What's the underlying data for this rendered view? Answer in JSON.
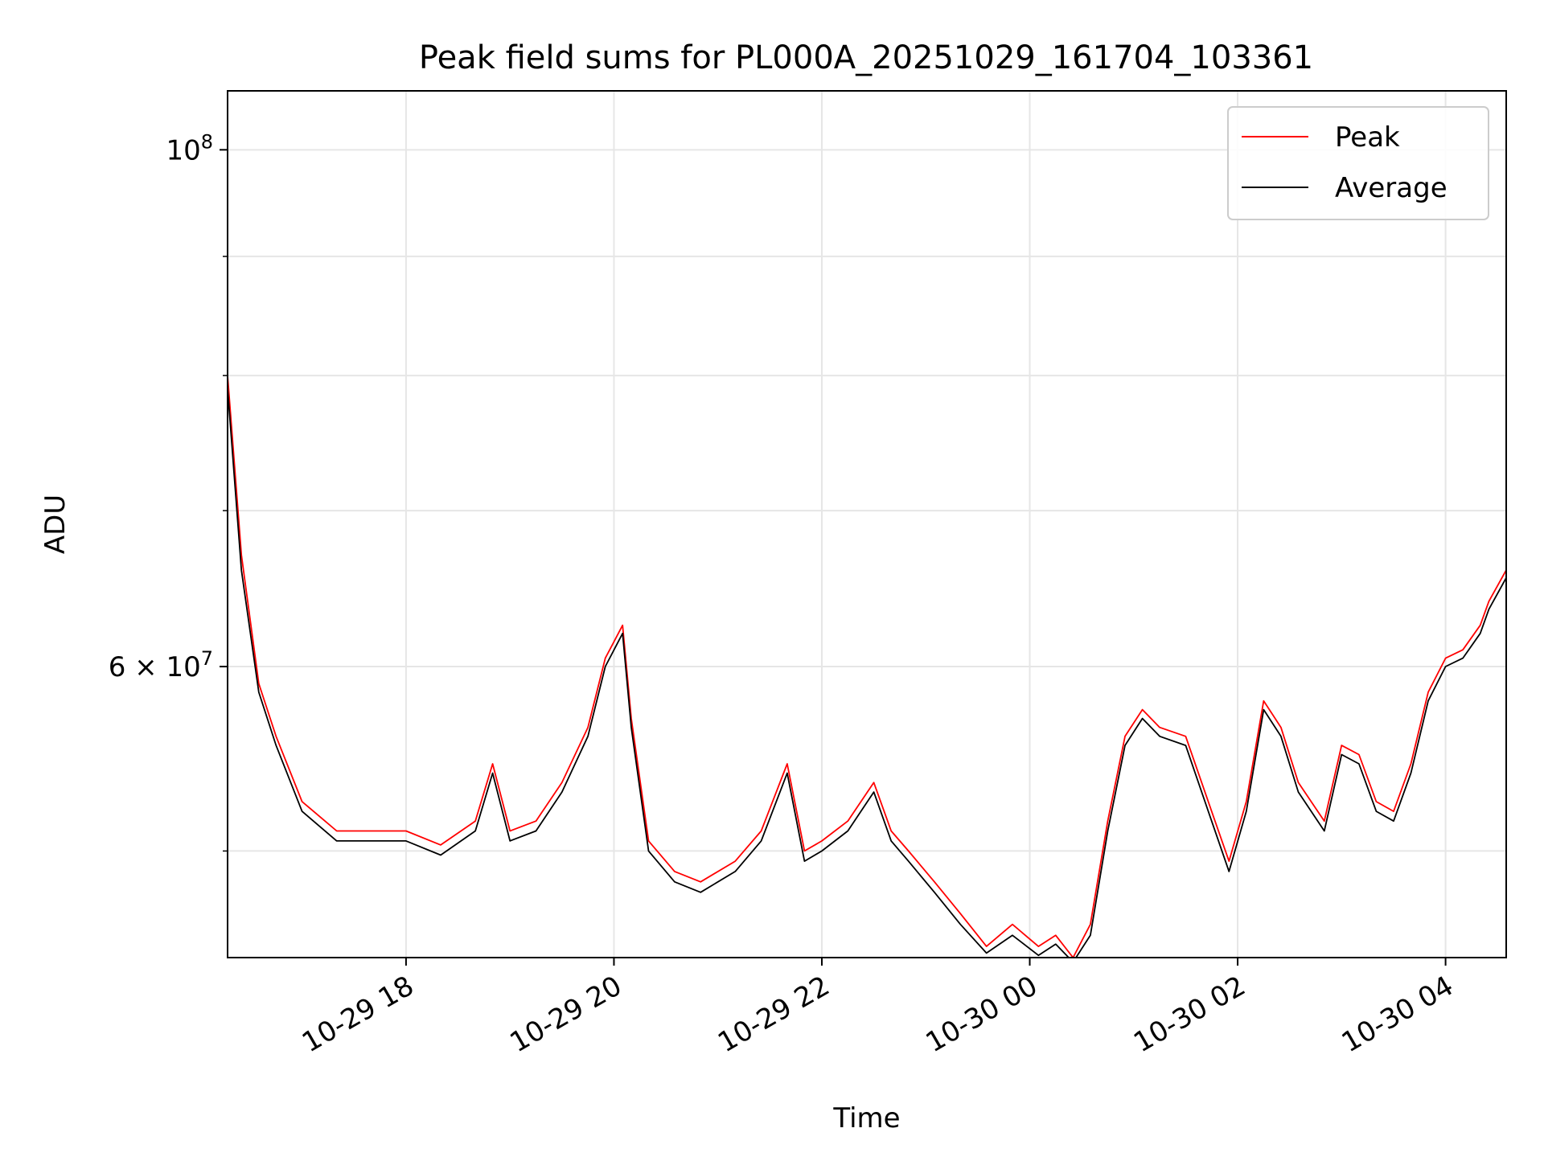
{
  "chart_data": {
    "type": "line",
    "title": "Peak field sums for PL000A_20251029_161704_103361",
    "xlabel": "Time",
    "ylabel": "ADU",
    "x_axis": "datetime",
    "xlim": [
      "2025-10-29 16:17",
      "2025-10-30 04:35"
    ],
    "yscale": "log",
    "ylim": [
      45000000,
      106000000
    ],
    "grid": true,
    "legend": "top-right",
    "x_ticks": [
      {
        "value": "2025-10-29 18:00",
        "label": "10-29 18"
      },
      {
        "value": "2025-10-29 20:00",
        "label": "10-29 20"
      },
      {
        "value": "2025-10-29 22:00",
        "label": "10-29 22"
      },
      {
        "value": "2025-10-30 00:00",
        "label": "10-30 00"
      },
      {
        "value": "2025-10-30 02:00",
        "label": "10-30 02"
      },
      {
        "value": "2025-10-30 04:00",
        "label": "10-30 04"
      }
    ],
    "y_major_ticks": [
      {
        "value": 100000000,
        "label_base": "10",
        "label_exp": "8"
      },
      {
        "value": 60000000,
        "label_base": "6 × 10",
        "label_exp": "7"
      }
    ],
    "y_minor_ticks": [
      50000000,
      70000000,
      80000000,
      90000000
    ],
    "series": [
      {
        "name": "Peak",
        "color": "#ff0000",
        "points": [
          [
            "2025-10-29 16:17",
            80000000
          ],
          [
            "2025-10-29 16:25",
            67000000
          ],
          [
            "2025-10-29 16:35",
            59000000
          ],
          [
            "2025-10-29 16:45",
            56000000
          ],
          [
            "2025-10-29 17:00",
            52500000
          ],
          [
            "2025-10-29 17:20",
            51000000
          ],
          [
            "2025-10-29 17:40",
            51000000
          ],
          [
            "2025-10-29 18:00",
            51000000
          ],
          [
            "2025-10-29 18:20",
            50300000
          ],
          [
            "2025-10-29 18:40",
            51500000
          ],
          [
            "2025-10-29 18:50",
            54500000
          ],
          [
            "2025-10-29 19:00",
            51000000
          ],
          [
            "2025-10-29 19:15",
            51500000
          ],
          [
            "2025-10-29 19:30",
            53500000
          ],
          [
            "2025-10-29 19:45",
            56500000
          ],
          [
            "2025-10-29 19:55",
            60500000
          ],
          [
            "2025-10-29 20:05",
            62500000
          ],
          [
            "2025-10-29 20:10",
            57000000
          ],
          [
            "2025-10-29 20:20",
            50500000
          ],
          [
            "2025-10-29 20:35",
            49000000
          ],
          [
            "2025-10-29 20:50",
            48500000
          ],
          [
            "2025-10-29 21:10",
            49500000
          ],
          [
            "2025-10-29 21:25",
            51000000
          ],
          [
            "2025-10-29 21:40",
            54500000
          ],
          [
            "2025-10-29 21:50",
            50000000
          ],
          [
            "2025-10-29 22:00",
            50500000
          ],
          [
            "2025-10-29 22:15",
            51500000
          ],
          [
            "2025-10-29 22:30",
            53500000
          ],
          [
            "2025-10-29 22:40",
            51000000
          ],
          [
            "2025-10-29 22:50",
            50000000
          ],
          [
            "2025-10-29 23:05",
            48500000
          ],
          [
            "2025-10-29 23:20",
            47000000
          ],
          [
            "2025-10-29 23:35",
            45500000
          ],
          [
            "2025-10-29 23:50",
            46500000
          ],
          [
            "2025-10-30 00:05",
            45500000
          ],
          [
            "2025-10-30 00:15",
            46000000
          ],
          [
            "2025-10-30 00:25",
            45000000
          ],
          [
            "2025-10-30 00:35",
            46500000
          ],
          [
            "2025-10-30 00:45",
            51500000
          ],
          [
            "2025-10-30 00:55",
            56000000
          ],
          [
            "2025-10-30 01:05",
            57500000
          ],
          [
            "2025-10-30 01:15",
            56500000
          ],
          [
            "2025-10-30 01:30",
            56000000
          ],
          [
            "2025-10-30 01:45",
            52000000
          ],
          [
            "2025-10-30 01:55",
            49500000
          ],
          [
            "2025-10-30 02:05",
            52500000
          ],
          [
            "2025-10-30 02:15",
            58000000
          ],
          [
            "2025-10-30 02:25",
            56500000
          ],
          [
            "2025-10-30 02:35",
            53500000
          ],
          [
            "2025-10-30 02:50",
            51500000
          ],
          [
            "2025-10-30 03:00",
            55500000
          ],
          [
            "2025-10-30 03:10",
            55000000
          ],
          [
            "2025-10-30 03:20",
            52500000
          ],
          [
            "2025-10-30 03:30",
            52000000
          ],
          [
            "2025-10-30 03:40",
            54500000
          ],
          [
            "2025-10-30 03:50",
            58500000
          ],
          [
            "2025-10-30 04:00",
            60500000
          ],
          [
            "2025-10-30 04:10",
            61000000
          ],
          [
            "2025-10-30 04:20",
            62500000
          ],
          [
            "2025-10-30 04:25",
            64000000
          ],
          [
            "2025-10-30 04:35",
            66000000
          ]
        ]
      },
      {
        "name": "Average",
        "color": "#000000",
        "points": [
          [
            "2025-10-29 16:17",
            79000000
          ],
          [
            "2025-10-29 16:25",
            66000000
          ],
          [
            "2025-10-29 16:35",
            58500000
          ],
          [
            "2025-10-29 16:45",
            55500000
          ],
          [
            "2025-10-29 17:00",
            52000000
          ],
          [
            "2025-10-29 17:20",
            50500000
          ],
          [
            "2025-10-29 17:40",
            50500000
          ],
          [
            "2025-10-29 18:00",
            50500000
          ],
          [
            "2025-10-29 18:20",
            49800000
          ],
          [
            "2025-10-29 18:40",
            51000000
          ],
          [
            "2025-10-29 18:50",
            54000000
          ],
          [
            "2025-10-29 19:00",
            50500000
          ],
          [
            "2025-10-29 19:15",
            51000000
          ],
          [
            "2025-10-29 19:30",
            53000000
          ],
          [
            "2025-10-29 19:45",
            56000000
          ],
          [
            "2025-10-29 19:55",
            60000000
          ],
          [
            "2025-10-29 20:05",
            62000000
          ],
          [
            "2025-10-29 20:10",
            56500000
          ],
          [
            "2025-10-29 20:20",
            50000000
          ],
          [
            "2025-10-29 20:35",
            48500000
          ],
          [
            "2025-10-29 20:50",
            48000000
          ],
          [
            "2025-10-29 21:10",
            49000000
          ],
          [
            "2025-10-29 21:25",
            50500000
          ],
          [
            "2025-10-29 21:40",
            54000000
          ],
          [
            "2025-10-29 21:50",
            49500000
          ],
          [
            "2025-10-29 22:00",
            50000000
          ],
          [
            "2025-10-29 22:15",
            51000000
          ],
          [
            "2025-10-29 22:30",
            53000000
          ],
          [
            "2025-10-29 22:40",
            50500000
          ],
          [
            "2025-10-29 22:50",
            49500000
          ],
          [
            "2025-10-29 23:05",
            48000000
          ],
          [
            "2025-10-29 23:20",
            46500000
          ],
          [
            "2025-10-29 23:35",
            45200000
          ],
          [
            "2025-10-29 23:50",
            46000000
          ],
          [
            "2025-10-30 00:05",
            45100000
          ],
          [
            "2025-10-30 00:15",
            45600000
          ],
          [
            "2025-10-30 00:25",
            44800000
          ],
          [
            "2025-10-30 00:35",
            46000000
          ],
          [
            "2025-10-30 00:45",
            51000000
          ],
          [
            "2025-10-30 00:55",
            55500000
          ],
          [
            "2025-10-30 01:05",
            57000000
          ],
          [
            "2025-10-30 01:15",
            56000000
          ],
          [
            "2025-10-30 01:30",
            55500000
          ],
          [
            "2025-10-30 01:45",
            51500000
          ],
          [
            "2025-10-30 01:55",
            49000000
          ],
          [
            "2025-10-30 02:05",
            52000000
          ],
          [
            "2025-10-30 02:15",
            57500000
          ],
          [
            "2025-10-30 02:25",
            56000000
          ],
          [
            "2025-10-30 02:35",
            53000000
          ],
          [
            "2025-10-30 02:50",
            51000000
          ],
          [
            "2025-10-30 03:00",
            55000000
          ],
          [
            "2025-10-30 03:10",
            54500000
          ],
          [
            "2025-10-30 03:20",
            52000000
          ],
          [
            "2025-10-30 03:30",
            51500000
          ],
          [
            "2025-10-30 03:40",
            54000000
          ],
          [
            "2025-10-30 03:50",
            58000000
          ],
          [
            "2025-10-30 04:00",
            60000000
          ],
          [
            "2025-10-30 04:10",
            60500000
          ],
          [
            "2025-10-30 04:20",
            62000000
          ],
          [
            "2025-10-30 04:25",
            63500000
          ],
          [
            "2025-10-30 04:35",
            65500000
          ]
        ]
      }
    ]
  }
}
